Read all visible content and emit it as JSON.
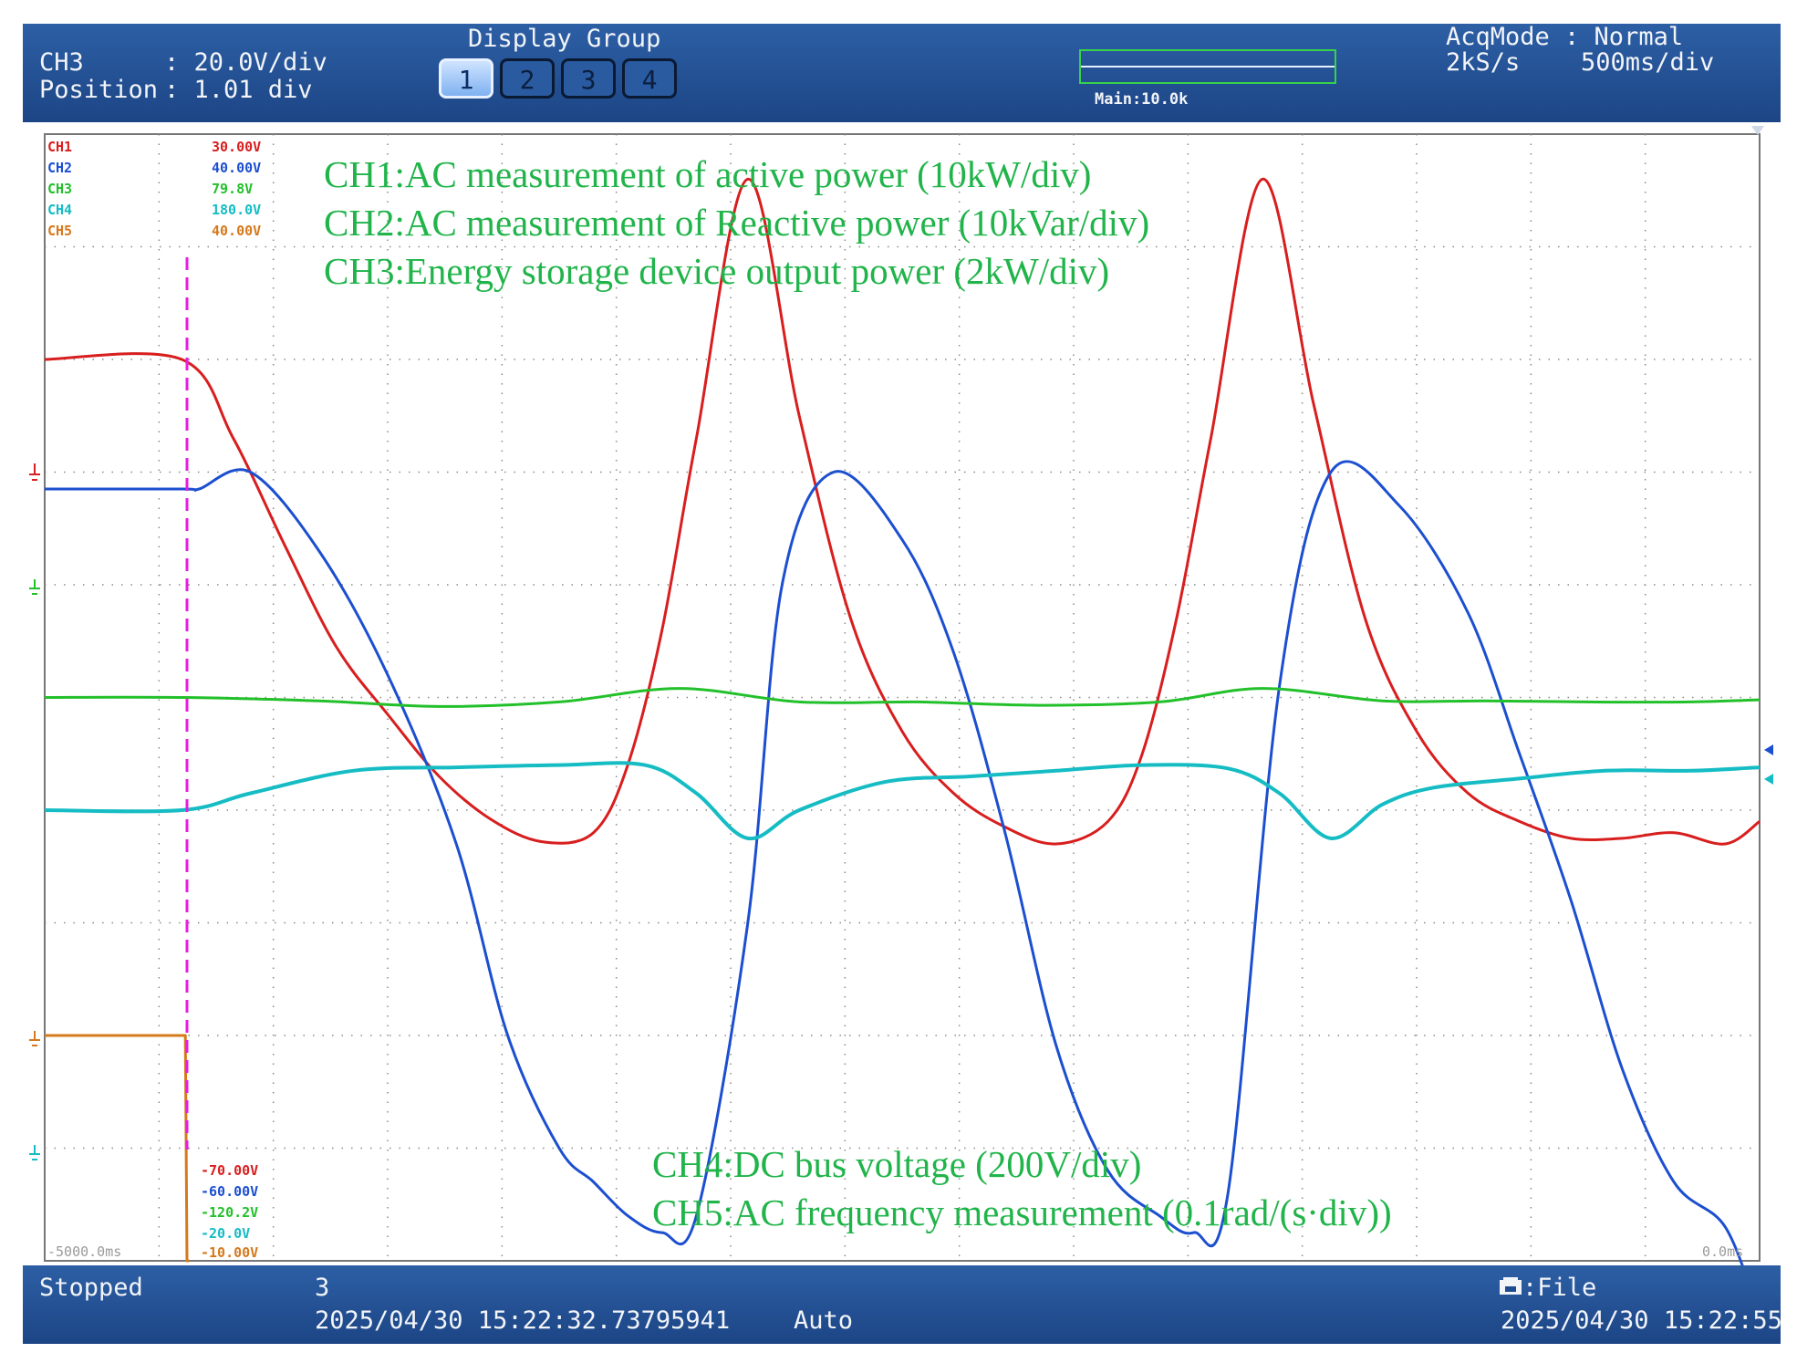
{
  "header": {
    "channel": "CH3",
    "scale": ": 20.0V/div",
    "position_label": "Position",
    "position_value": ": 1.01 div",
    "display_group_title": "Display Group",
    "groups": [
      "1",
      "2",
      "3",
      "4"
    ],
    "active_group": "1",
    "main_label": "Main:10.0k",
    "acq_mode": "AcqMode : Normal",
    "sample_rate": "2kS/s",
    "time_per_div": "500ms/div"
  },
  "channel_scales_top": [
    {
      "name": "CH1",
      "value": "30.00V",
      "color": "#d81e1e"
    },
    {
      "name": "CH2",
      "value": "40.00V",
      "color": "#1c4fd0"
    },
    {
      "name": "CH3",
      "value": "79.8V",
      "color": "#22c02a"
    },
    {
      "name": "CH4",
      "value": "180.0V",
      "color": "#15bcc4"
    },
    {
      "name": "CH5",
      "value": "40.00V",
      "color": "#d5791c"
    }
  ],
  "channel_scales_bottom": [
    {
      "value": "-70.00V",
      "color": "#d81e1e"
    },
    {
      "value": "-60.00V",
      "color": "#1c4fd0"
    },
    {
      "value": "-120.2V",
      "color": "#22c02a"
    },
    {
      "value": "-20.0V",
      "color": "#15bcc4"
    },
    {
      "value": "-10.00V",
      "color": "#d5791c"
    }
  ],
  "time_start": "-5000.0ms",
  "time_end": "0.0ms",
  "annotations_top": [
    "CH1:AC measurement of active power (10kW/div)",
    "CH2:AC measurement of Reactive power (10kVar/div)",
    "CH3:Energy storage device output power (2kW/div)"
  ],
  "annotations_bottom": [
    "CH4:DC bus voltage (200V/div)",
    "CH5:AC frequency measurement (0.1rad/(s·div))"
  ],
  "footer": {
    "status": "Stopped",
    "count": "3",
    "trigger_time": "2025/04/30 15:22:32.73795941",
    "mode": "Auto",
    "file_label": ":File",
    "timestamp": "2025/04/30 15:22:55"
  },
  "colors": {
    "bar": "#1f4b8f",
    "grid": "#8a8a8a",
    "event_marker": "#e81ce0"
  },
  "chart_data": {
    "type": "line",
    "xlabel": "",
    "ylabel": "",
    "x_range_ms": [
      -5000,
      0
    ],
    "y_range_div": [
      -5,
      5
    ],
    "grid": true,
    "event_time_ms": -4600,
    "series": [
      {
        "name": "CH1",
        "color": "#d81e1e",
        "x": [
          -5000,
          -4600,
          -4450,
          -4300,
          -4150,
          -4000,
          -3850,
          -3700,
          -3550,
          -3400,
          -3300,
          -3200,
          -3100,
          -2950,
          -2800,
          -2650,
          -2500,
          -2350,
          -2200,
          -2050,
          -1900,
          -1800,
          -1700,
          -1600,
          -1450,
          -1300,
          -1150,
          -1000,
          -850,
          -700,
          -550,
          -400,
          -250,
          -100,
          0
        ],
        "y": [
          3.0,
          3.0,
          2.3,
          1.35,
          0.45,
          -0.15,
          -0.7,
          -1.08,
          -1.28,
          -1.2,
          -0.6,
          0.6,
          2.3,
          4.6,
          2.5,
          0.7,
          -0.3,
          -0.85,
          -1.15,
          -1.3,
          -1.1,
          -0.5,
          0.7,
          2.3,
          4.6,
          2.6,
          0.7,
          -0.3,
          -0.85,
          -1.1,
          -1.25,
          -1.25,
          -1.2,
          -1.3,
          -1.1
        ]
      },
      {
        "name": "CH2",
        "color": "#1c4fd0",
        "x": [
          -5000,
          -4600,
          -4550,
          -4400,
          -4200,
          -4000,
          -3800,
          -3650,
          -3500,
          -3400,
          -3300,
          -3200,
          -3100,
          -2950,
          -2850,
          -2700,
          -2500,
          -2350,
          -2200,
          -2050,
          -1900,
          -1750,
          -1650,
          -1550,
          -1400,
          -1250,
          -1050,
          -850,
          -700,
          -550,
          -400,
          -250,
          -100,
          0
        ],
        "y": [
          1.85,
          1.85,
          1.85,
          2.0,
          1.3,
          0.2,
          -1.3,
          -3.0,
          -4.0,
          -4.3,
          -4.6,
          -4.75,
          -4.6,
          -2.0,
          1.0,
          2.0,
          1.4,
          0.4,
          -1.2,
          -3.1,
          -4.2,
          -4.6,
          -4.75,
          -4.4,
          0.1,
          2.0,
          1.7,
          0.75,
          -0.5,
          -1.8,
          -3.3,
          -4.3,
          -4.7,
          -5.5
        ]
      },
      {
        "name": "CH3",
        "color": "#22c02a",
        "x": [
          -5000,
          -4600,
          -4200,
          -3850,
          -3500,
          -3150,
          -2800,
          -2450,
          -2100,
          -1750,
          -1450,
          -1100,
          -800,
          -500,
          -200,
          0
        ],
        "y": [
          0.0,
          0.0,
          -0.03,
          -0.08,
          -0.04,
          0.08,
          -0.04,
          -0.04,
          -0.07,
          -0.04,
          0.08,
          -0.03,
          -0.03,
          -0.04,
          -0.04,
          -0.02
        ]
      },
      {
        "name": "CH4",
        "color": "#15bcc4",
        "x": [
          -5000,
          -4600,
          -4400,
          -4100,
          -3800,
          -3500,
          -3250,
          -3100,
          -2950,
          -2800,
          -2550,
          -2300,
          -2050,
          -1800,
          -1550,
          -1400,
          -1250,
          -1100,
          -950,
          -700,
          -450,
          -200,
          0
        ],
        "y": [
          -1.0,
          -1.0,
          -0.85,
          -0.65,
          -0.62,
          -0.6,
          -0.6,
          -0.85,
          -1.25,
          -1.0,
          -0.75,
          -0.7,
          -0.65,
          -0.6,
          -0.63,
          -0.85,
          -1.25,
          -0.95,
          -0.8,
          -0.72,
          -0.65,
          -0.65,
          -0.62
        ]
      },
      {
        "name": "CH5",
        "color": "#d5791c",
        "x": [
          -5000,
          -4600,
          -4590,
          -4585,
          -4580
        ],
        "y": [
          -3.0,
          -3.0,
          -3.0,
          -5.0,
          -5.0
        ]
      }
    ]
  }
}
